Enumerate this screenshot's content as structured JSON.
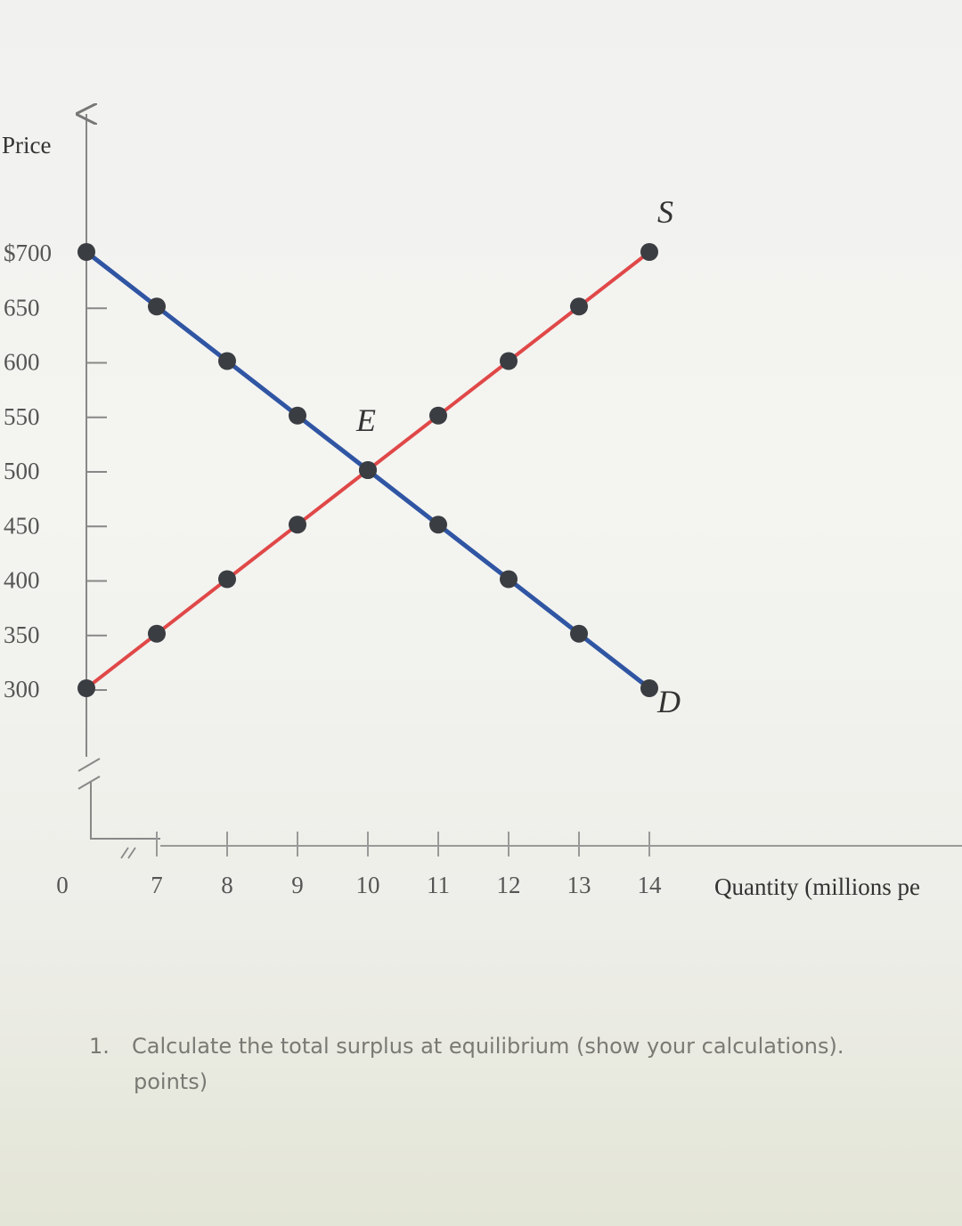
{
  "chart_data": {
    "type": "line",
    "title": "",
    "ylabel": "Price",
    "xlabel": "Quantity (millions pe",
    "y_ticks": [
      "$700",
      "650",
      "600",
      "550",
      "500",
      "450",
      "400",
      "350",
      "300"
    ],
    "x_ticks": [
      "0",
      "7",
      "8",
      "9",
      "10",
      "11",
      "12",
      "13",
      "14"
    ],
    "xlim": [
      6,
      14
    ],
    "ylim": [
      300,
      700
    ],
    "axis_break": true,
    "grid": false,
    "series": [
      {
        "name": "D",
        "color": "#2f55a3",
        "x": [
          6,
          7,
          8,
          9,
          10,
          11,
          12,
          13,
          14
        ],
        "y": [
          700,
          650,
          600,
          550,
          500,
          450,
          400,
          350,
          300
        ]
      },
      {
        "name": "S",
        "color": "#e04848",
        "x": [
          6,
          7,
          8,
          9,
          10,
          11,
          12,
          13,
          14
        ],
        "y": [
          300,
          350,
          400,
          450,
          500,
          550,
          600,
          650,
          700
        ]
      }
    ],
    "annotations": [
      {
        "text": "E",
        "x": 10,
        "y": 500
      }
    ]
  },
  "question": {
    "number": "1.",
    "line1": "Calculate the total surplus at equilibrium (show your calculations).",
    "line2": "points)"
  }
}
